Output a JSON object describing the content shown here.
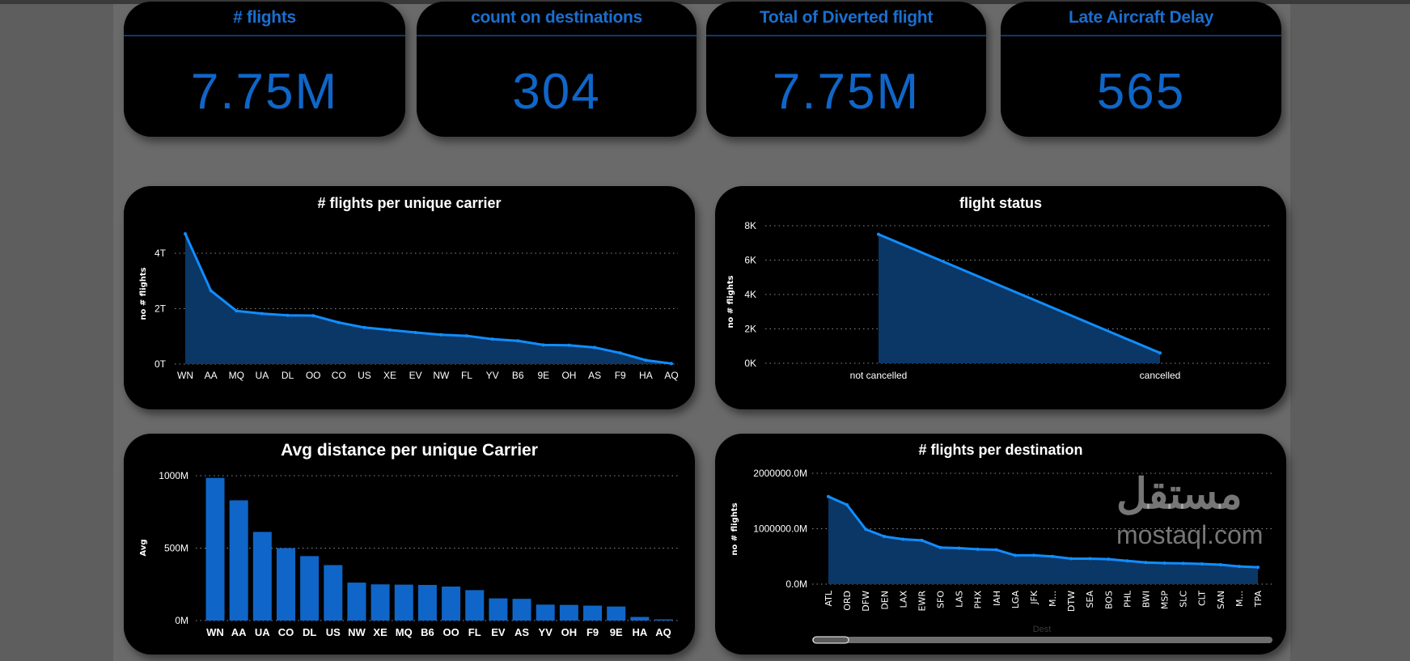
{
  "kpis": [
    {
      "title": "# flights",
      "value": "7.75M"
    },
    {
      "title": "count on destinations",
      "value": "304"
    },
    {
      "title": "Total of Diverted flight",
      "value": "7.75M"
    },
    {
      "title": "Late Aircraft Delay",
      "value": "565"
    }
  ],
  "colors": {
    "accent": "#0f66c8",
    "line": "#118dff",
    "area": "#0a3766",
    "bar": "#0f66c8",
    "card": "#000000",
    "background": "#6a6a6a"
  },
  "watermark": {
    "arabic": "مستقل",
    "latin": "mostaql.com"
  },
  "chart_data": [
    {
      "type": "area",
      "title": "# flights per unique carrier",
      "ylabel": "no # flights",
      "xlabel": "",
      "ylim": [
        0,
        4.8
      ],
      "yticks": [
        {
          "v": 0,
          "label": "0T"
        },
        {
          "v": 2,
          "label": "2T"
        },
        {
          "v": 4,
          "label": "4T"
        }
      ],
      "grid": true,
      "categories": [
        "WN",
        "AA",
        "MQ",
        "UA",
        "DL",
        "OO",
        "CO",
        "US",
        "XE",
        "EV",
        "NW",
        "FL",
        "YV",
        "B6",
        "9E",
        "OH",
        "AS",
        "F9",
        "HA",
        "AQ"
      ],
      "values": [
        4.7,
        2.65,
        1.92,
        1.82,
        1.76,
        1.75,
        1.5,
        1.32,
        1.23,
        1.14,
        1.06,
        1.02,
        0.9,
        0.84,
        0.69,
        0.68,
        0.6,
        0.4,
        0.14,
        0.02
      ]
    },
    {
      "type": "area",
      "title": "flight status",
      "ylabel": "no # flights",
      "xlabel": "",
      "ylim": [
        0,
        8
      ],
      "yticks": [
        {
          "v": 0,
          "label": "0K"
        },
        {
          "v": 2,
          "label": "2K"
        },
        {
          "v": 4,
          "label": "4K"
        },
        {
          "v": 6,
          "label": "6K"
        },
        {
          "v": 8,
          "label": "8K"
        }
      ],
      "grid": true,
      "categories": [
        "not cancelled",
        "cancelled"
      ],
      "values": [
        7.5,
        0.6
      ]
    },
    {
      "type": "bar",
      "title": "Avg distance per unique Carrier",
      "ylabel": "Avg",
      "xlabel": "",
      "ylim": [
        0,
        1000
      ],
      "yticks": [
        {
          "v": 0,
          "label": "0M"
        },
        {
          "v": 500,
          "label": "500M"
        },
        {
          "v": 1000,
          "label": "1000M"
        }
      ],
      "grid": true,
      "categories": [
        "WN",
        "AA",
        "UA",
        "CO",
        "DL",
        "US",
        "NW",
        "XE",
        "MQ",
        "B6",
        "OO",
        "FL",
        "EV",
        "AS",
        "YV",
        "OH",
        "F9",
        "9E",
        "HA",
        "AQ"
      ],
      "values": [
        985,
        830,
        612,
        500,
        445,
        383,
        262,
        250,
        248,
        246,
        235,
        210,
        153,
        150,
        110,
        108,
        103,
        97,
        25,
        8
      ]
    },
    {
      "type": "area",
      "title": "# flights per destination",
      "ylabel": "no # flights",
      "xlabel": "Dest",
      "ylim": [
        0,
        2000000
      ],
      "yticks": [
        {
          "v": 0,
          "label": "0.0M"
        },
        {
          "v": 1000000,
          "label": "1000000.0M"
        },
        {
          "v": 2000000,
          "label": "2000000.0M"
        }
      ],
      "grid": true,
      "categories": [
        "ATL",
        "ORD",
        "DFW",
        "DEN",
        "LAX",
        "EWR",
        "SFO",
        "LAS",
        "PHX",
        "IAH",
        "LGA",
        "JFK",
        "M...",
        "DTW",
        "SEA",
        "BOS",
        "PHL",
        "BWI",
        "MSP",
        "SLC",
        "CLT",
        "SAN",
        "M...",
        "TPA"
      ],
      "values": [
        1580000,
        1430000,
        990000,
        860000,
        810000,
        790000,
        660000,
        650000,
        630000,
        620000,
        520000,
        520000,
        500000,
        460000,
        460000,
        450000,
        420000,
        390000,
        380000,
        375000,
        365000,
        350000,
        320000,
        305000
      ]
    }
  ]
}
